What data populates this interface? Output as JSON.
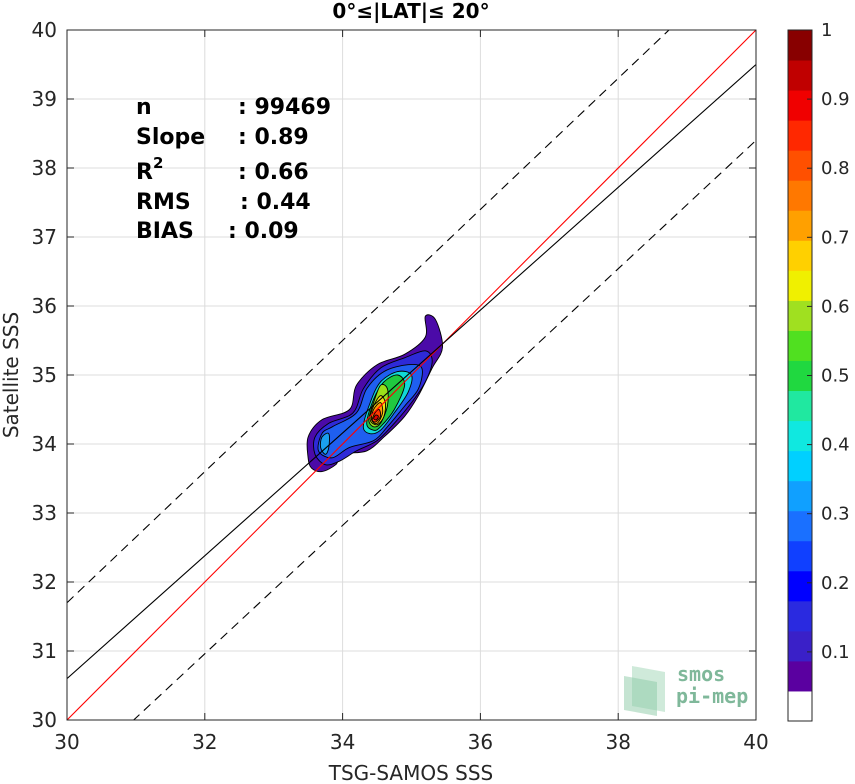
{
  "chart_data": {
    "type": "heatmap",
    "title": "0°≤|LAT|≤ 20°",
    "xlabel": "TSG-SAMOS SSS",
    "ylabel": "Satellite SSS",
    "xlim": [
      30,
      40
    ],
    "ylim": [
      30,
      40
    ],
    "xticks": [
      "30",
      "32",
      "34",
      "36",
      "38",
      "40"
    ],
    "yticks": [
      "30",
      "31",
      "32",
      "33",
      "34",
      "35",
      "36",
      "37",
      "38",
      "39",
      "40"
    ],
    "grid": true,
    "stats": [
      {
        "label": "n",
        "value": ": 99469"
      },
      {
        "label": "Slope",
        "value": ": 0.89"
      },
      {
        "label": "R",
        "sup": "2",
        "value": ": 0.66"
      },
      {
        "label": "RMS",
        "value": ": 0.44"
      },
      {
        "label": "BIAS",
        "value": ": 0.09"
      }
    ],
    "lines": [
      {
        "name": "identity",
        "color": "#ff0000",
        "style": "solid",
        "points": [
          [
            30,
            30
          ],
          [
            40,
            40
          ]
        ]
      },
      {
        "name": "regression",
        "color": "#000000",
        "style": "solid",
        "points": [
          [
            30,
            30.6
          ],
          [
            40,
            39.5
          ]
        ]
      },
      {
        "name": "upper-bound",
        "color": "#000000",
        "style": "dashed",
        "points": [
          [
            30,
            31.7
          ],
          [
            40,
            41.2
          ]
        ]
      },
      {
        "name": "lower-bound",
        "color": "#000000",
        "style": "dashed",
        "points": [
          [
            30,
            29.1
          ],
          [
            40,
            38.4
          ]
        ]
      }
    ],
    "contours": [
      {
        "level": 0.05,
        "color": "#4b0aa8",
        "points": [
          [
            33.5,
            33.8
          ],
          [
            33.5,
            34.1
          ],
          [
            33.7,
            34.35
          ],
          [
            34.1,
            34.5
          ],
          [
            34.2,
            34.85
          ],
          [
            34.5,
            35.15
          ],
          [
            34.9,
            35.3
          ],
          [
            35.2,
            35.55
          ],
          [
            35.2,
            35.85
          ],
          [
            35.35,
            35.8
          ],
          [
            35.45,
            35.4
          ],
          [
            35.3,
            35.1
          ],
          [
            35.1,
            34.7
          ],
          [
            34.9,
            34.4
          ],
          [
            34.6,
            34.1
          ],
          [
            34.35,
            33.9
          ],
          [
            34.0,
            33.85
          ],
          [
            33.9,
            33.7
          ],
          [
            33.7,
            33.6
          ],
          [
            33.55,
            33.65
          ]
        ]
      },
      {
        "level": 0.1,
        "color": "#2e2ad8",
        "points": [
          [
            33.6,
            33.85
          ],
          [
            33.6,
            34.1
          ],
          [
            33.8,
            34.3
          ],
          [
            34.15,
            34.45
          ],
          [
            34.3,
            34.8
          ],
          [
            34.55,
            35.1
          ],
          [
            34.9,
            35.25
          ],
          [
            35.2,
            35.35
          ],
          [
            35.3,
            35.2
          ],
          [
            35.2,
            34.9
          ],
          [
            35.0,
            34.6
          ],
          [
            34.75,
            34.3
          ],
          [
            34.5,
            34.05
          ],
          [
            34.2,
            33.9
          ],
          [
            33.95,
            33.75
          ],
          [
            33.75,
            33.7
          ]
        ]
      },
      {
        "level": 0.2,
        "color": "#1f5ff0",
        "points": [
          [
            33.65,
            33.9
          ],
          [
            33.7,
            34.15
          ],
          [
            33.85,
            34.25
          ],
          [
            34.2,
            34.45
          ],
          [
            34.35,
            34.8
          ],
          [
            34.6,
            35.05
          ],
          [
            34.95,
            35.15
          ],
          [
            35.15,
            35.1
          ],
          [
            35.1,
            34.8
          ],
          [
            34.9,
            34.55
          ],
          [
            34.65,
            34.25
          ],
          [
            34.45,
            34.05
          ],
          [
            34.1,
            33.95
          ],
          [
            33.85,
            33.8
          ]
        ]
      },
      {
        "level": 0.3,
        "color": "#1aa0f0",
        "points": [
          [
            33.68,
            33.95
          ],
          [
            33.7,
            34.1
          ],
          [
            33.8,
            34.15
          ],
          [
            33.8,
            33.95
          ],
          [
            33.75,
            33.85
          ]
        ]
      },
      {
        "level": 0.4,
        "color": "#10d8d8",
        "points": [
          [
            34.3,
            34.25
          ],
          [
            34.4,
            34.6
          ],
          [
            34.55,
            34.9
          ],
          [
            34.8,
            35.05
          ],
          [
            35.0,
            35.0
          ],
          [
            34.95,
            34.75
          ],
          [
            34.75,
            34.45
          ],
          [
            34.55,
            34.2
          ],
          [
            34.4,
            34.15
          ]
        ]
      },
      {
        "level": 0.5,
        "color": "#20c840",
        "points": [
          [
            34.35,
            34.3
          ],
          [
            34.45,
            34.65
          ],
          [
            34.6,
            34.9
          ],
          [
            34.8,
            35.0
          ],
          [
            34.9,
            34.85
          ],
          [
            34.75,
            34.5
          ],
          [
            34.55,
            34.25
          ],
          [
            34.45,
            34.2
          ]
        ]
      },
      {
        "level": 0.6,
        "color": "#9be01a",
        "points": [
          [
            34.38,
            34.35
          ],
          [
            34.45,
            34.6
          ],
          [
            34.55,
            34.85
          ],
          [
            34.65,
            34.8
          ],
          [
            34.65,
            34.55
          ],
          [
            34.55,
            34.3
          ],
          [
            34.45,
            34.25
          ]
        ]
      },
      {
        "level": 0.7,
        "color": "#f5e010",
        "points": [
          [
            34.4,
            34.35
          ],
          [
            34.45,
            34.55
          ],
          [
            34.55,
            34.7
          ],
          [
            34.62,
            34.6
          ],
          [
            34.6,
            34.4
          ],
          [
            34.5,
            34.28
          ]
        ]
      },
      {
        "level": 0.8,
        "color": "#ff9a00",
        "points": [
          [
            34.42,
            34.35
          ],
          [
            34.45,
            34.5
          ],
          [
            34.55,
            34.6
          ],
          [
            34.58,
            34.45
          ],
          [
            34.5,
            34.3
          ]
        ]
      },
      {
        "level": 0.9,
        "color": "#ff3a00",
        "points": [
          [
            34.43,
            34.35
          ],
          [
            34.47,
            34.45
          ],
          [
            34.53,
            34.5
          ],
          [
            34.55,
            34.4
          ],
          [
            34.48,
            34.32
          ]
        ]
      },
      {
        "level": 1.0,
        "color": "#e00000",
        "points": [
          [
            34.45,
            34.37
          ],
          [
            34.48,
            34.42
          ],
          [
            34.52,
            34.4
          ],
          [
            34.49,
            34.35
          ]
        ]
      }
    ],
    "colorbar": {
      "levels": [
        "1",
        "0.9",
        "0.8",
        "0.7",
        "0.6",
        "0.5",
        "0.4",
        "0.3",
        "0.2",
        "0.1"
      ],
      "tick_values": [
        1,
        0.9,
        0.8,
        0.7,
        0.6,
        0.5,
        0.4,
        0.3,
        0.2,
        0.1
      ],
      "range": [
        0,
        1
      ],
      "colors": [
        "#ffffff",
        "#5a00a0",
        "#3a20c8",
        "#2a2ae0",
        "#0000ff",
        "#1040ff",
        "#1a70ff",
        "#10a0ff",
        "#00d0ff",
        "#10e8e0",
        "#20e8a0",
        "#20d840",
        "#50e020",
        "#a0e020",
        "#f0f000",
        "#ffd000",
        "#ffa000",
        "#ff7800",
        "#ff5000",
        "#ff2800",
        "#f00000",
        "#c00000",
        "#880000"
      ]
    }
  },
  "logo": {
    "line1": "smos",
    "line2": "pi-mep"
  }
}
